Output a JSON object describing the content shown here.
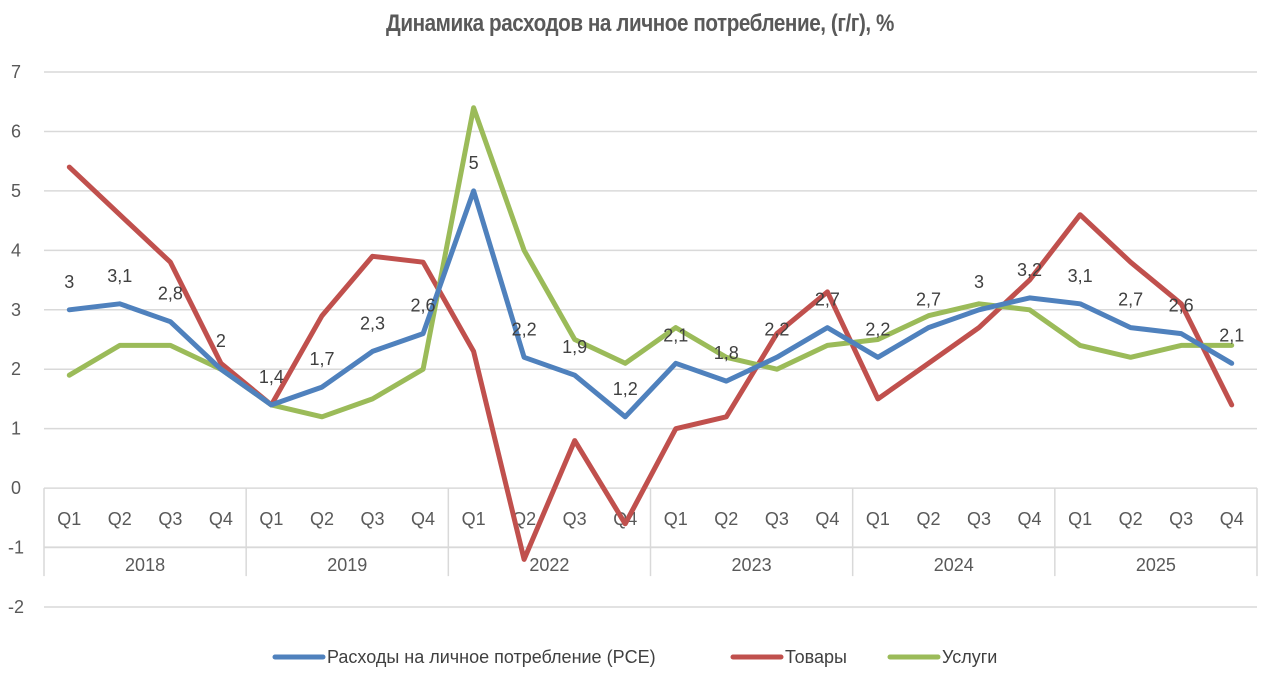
{
  "chart_data": {
    "type": "line",
    "title": "Динамика расходов на личное потребление, (г/г), %",
    "xlabel": "",
    "ylabel": "",
    "ylim": [
      -2,
      7
    ],
    "yticks": [
      7,
      6,
      5,
      4,
      3,
      2,
      1,
      0,
      -1,
      -2
    ],
    "grid": true,
    "legend_position": "bottom",
    "groups": [
      {
        "label": "2018",
        "quarters": [
          "Q1",
          "Q2",
          "Q3",
          "Q4"
        ]
      },
      {
        "label": "2019",
        "quarters": [
          "Q1",
          "Q2",
          "Q3",
          "Q4"
        ]
      },
      {
        "label": "2022",
        "quarters": [
          "Q1",
          "Q2",
          "Q3",
          "Q4"
        ]
      },
      {
        "label": "2023",
        "quarters": [
          "Q1",
          "Q2",
          "Q3",
          "Q4"
        ]
      },
      {
        "label": "2024",
        "quarters": [
          "Q1",
          "Q2",
          "Q3",
          "Q4"
        ]
      },
      {
        "label": "2025",
        "quarters": [
          "Q1",
          "Q2",
          "Q3",
          "Q4"
        ]
      }
    ],
    "series": [
      {
        "name": "Расходы на личное потребление (PCE)",
        "color": "#4f81bd",
        "values": [
          3,
          3.1,
          2.8,
          2,
          1.4,
          1.7,
          2.3,
          2.6,
          5,
          2.2,
          1.9,
          1.2,
          2.1,
          1.8,
          2.2,
          2.7,
          2.2,
          2.7,
          3,
          3.2,
          3.1,
          2.7,
          2.6,
          2.1
        ],
        "data_labels": [
          "3",
          "3,1",
          "2,8",
          "2",
          "1,4",
          "1,7",
          "2,3",
          "2,6",
          "5",
          "2,2",
          "1,9",
          "1,2",
          "2,1",
          "1,8",
          "2,2",
          "2,7",
          "2,2",
          "2,7",
          "3",
          "3,2",
          "3,1",
          "2,7",
          "2,6",
          "2,1"
        ]
      },
      {
        "name": "Товары",
        "color": "#c0504d",
        "values": [
          5.4,
          4.6,
          3.8,
          2.1,
          1.4,
          2.9,
          3.9,
          3.8,
          2.3,
          -1.2,
          0.8,
          -0.6,
          1.0,
          1.2,
          2.6,
          3.3,
          1.5,
          2.1,
          2.7,
          3.5,
          4.6,
          3.8,
          3.1,
          1.4
        ]
      },
      {
        "name": "Услуги",
        "color": "#9bbb59",
        "values": [
          1.9,
          2.4,
          2.4,
          2.0,
          1.4,
          1.2,
          1.5,
          2.0,
          6.4,
          4.0,
          2.5,
          2.1,
          2.7,
          2.2,
          2.0,
          2.4,
          2.5,
          2.9,
          3.1,
          3.0,
          2.4,
          2.2,
          2.4,
          2.4
        ]
      }
    ]
  }
}
